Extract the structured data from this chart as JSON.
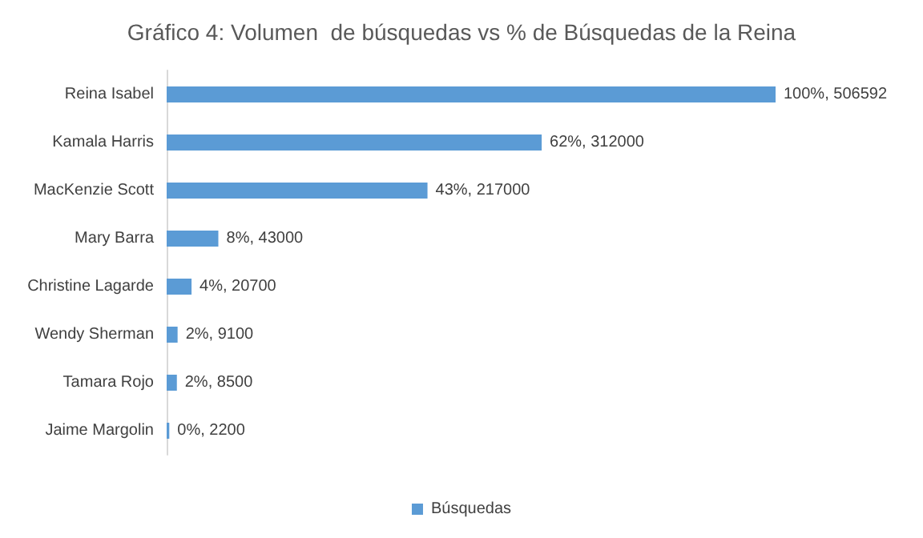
{
  "chart_data": {
    "type": "bar",
    "orientation": "horizontal",
    "title": "Gráfico 4: Volumen  de búsquedas vs % de Búsquedas de la Reina",
    "categories": [
      "Reina Isabel",
      "Kamala Harris",
      "MacKenzie Scott",
      "Mary Barra",
      "Christine Lagarde",
      "Wendy Sherman",
      "Tamara Rojo",
      "Jaime Margolin"
    ],
    "series": [
      {
        "name": "Búsquedas",
        "color": "#5b9bd5",
        "values": [
          506592,
          312000,
          217000,
          43000,
          20700,
          9100,
          8500,
          2200
        ],
        "value_labels": [
          "100%, 506592",
          "62%, 312000",
          "43%, 217000",
          "8%, 43000",
          "4%, 20700",
          "2%, 9100",
          "2%, 8500",
          "0%, 2200"
        ]
      }
    ],
    "legend": "bottom"
  }
}
